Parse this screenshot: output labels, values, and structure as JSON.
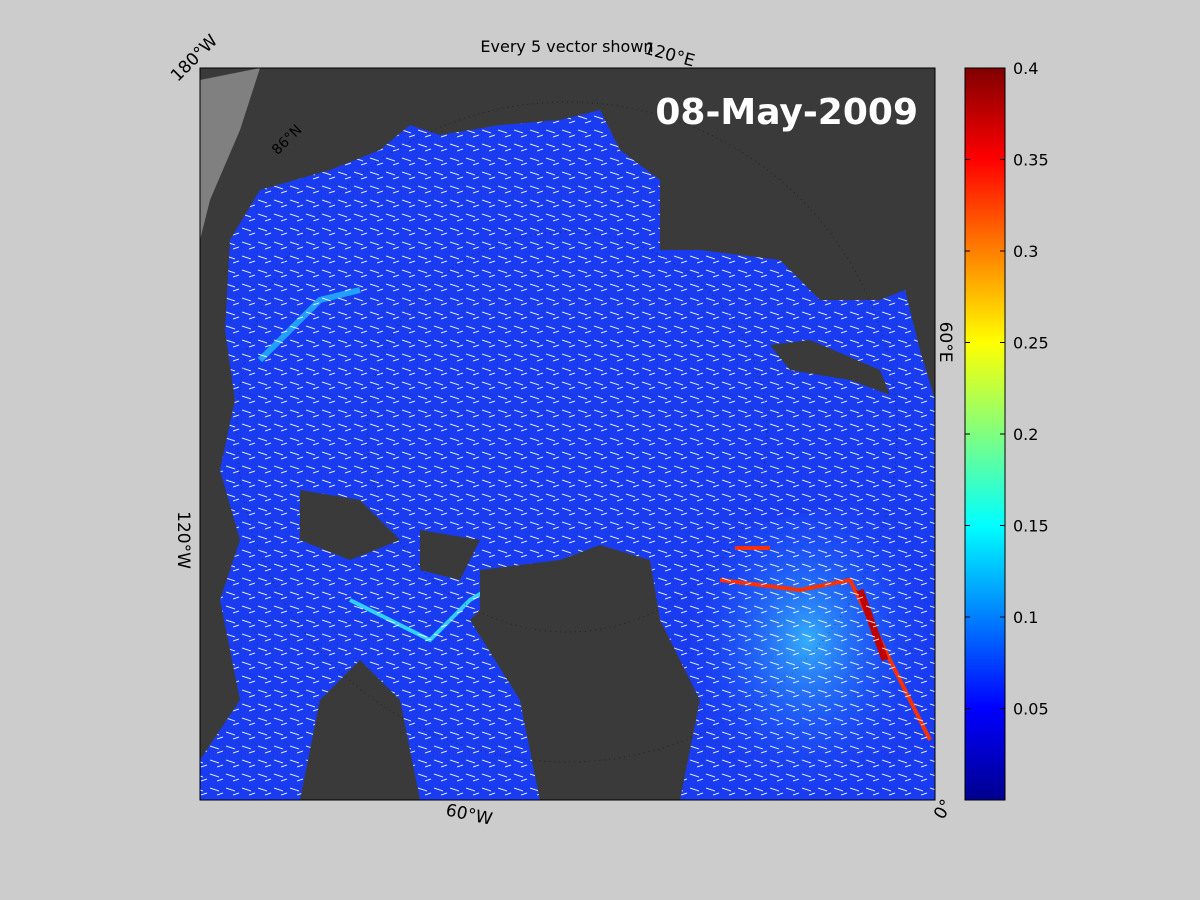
{
  "title": "Every 5 vector shown",
  "date": "08-May-2009",
  "map_labels": {
    "top_left": "180°W",
    "top_right": "120°E",
    "right": "60°E",
    "bottom_right": "0°",
    "bottom": "60°W",
    "left": "120°W",
    "latitude": "86°N"
  },
  "colorbar": {
    "lim": [
      0,
      0.4
    ],
    "ticks": [
      0.05,
      0.1,
      0.15,
      0.2,
      0.25,
      0.3,
      0.35,
      0.4
    ]
  }
}
